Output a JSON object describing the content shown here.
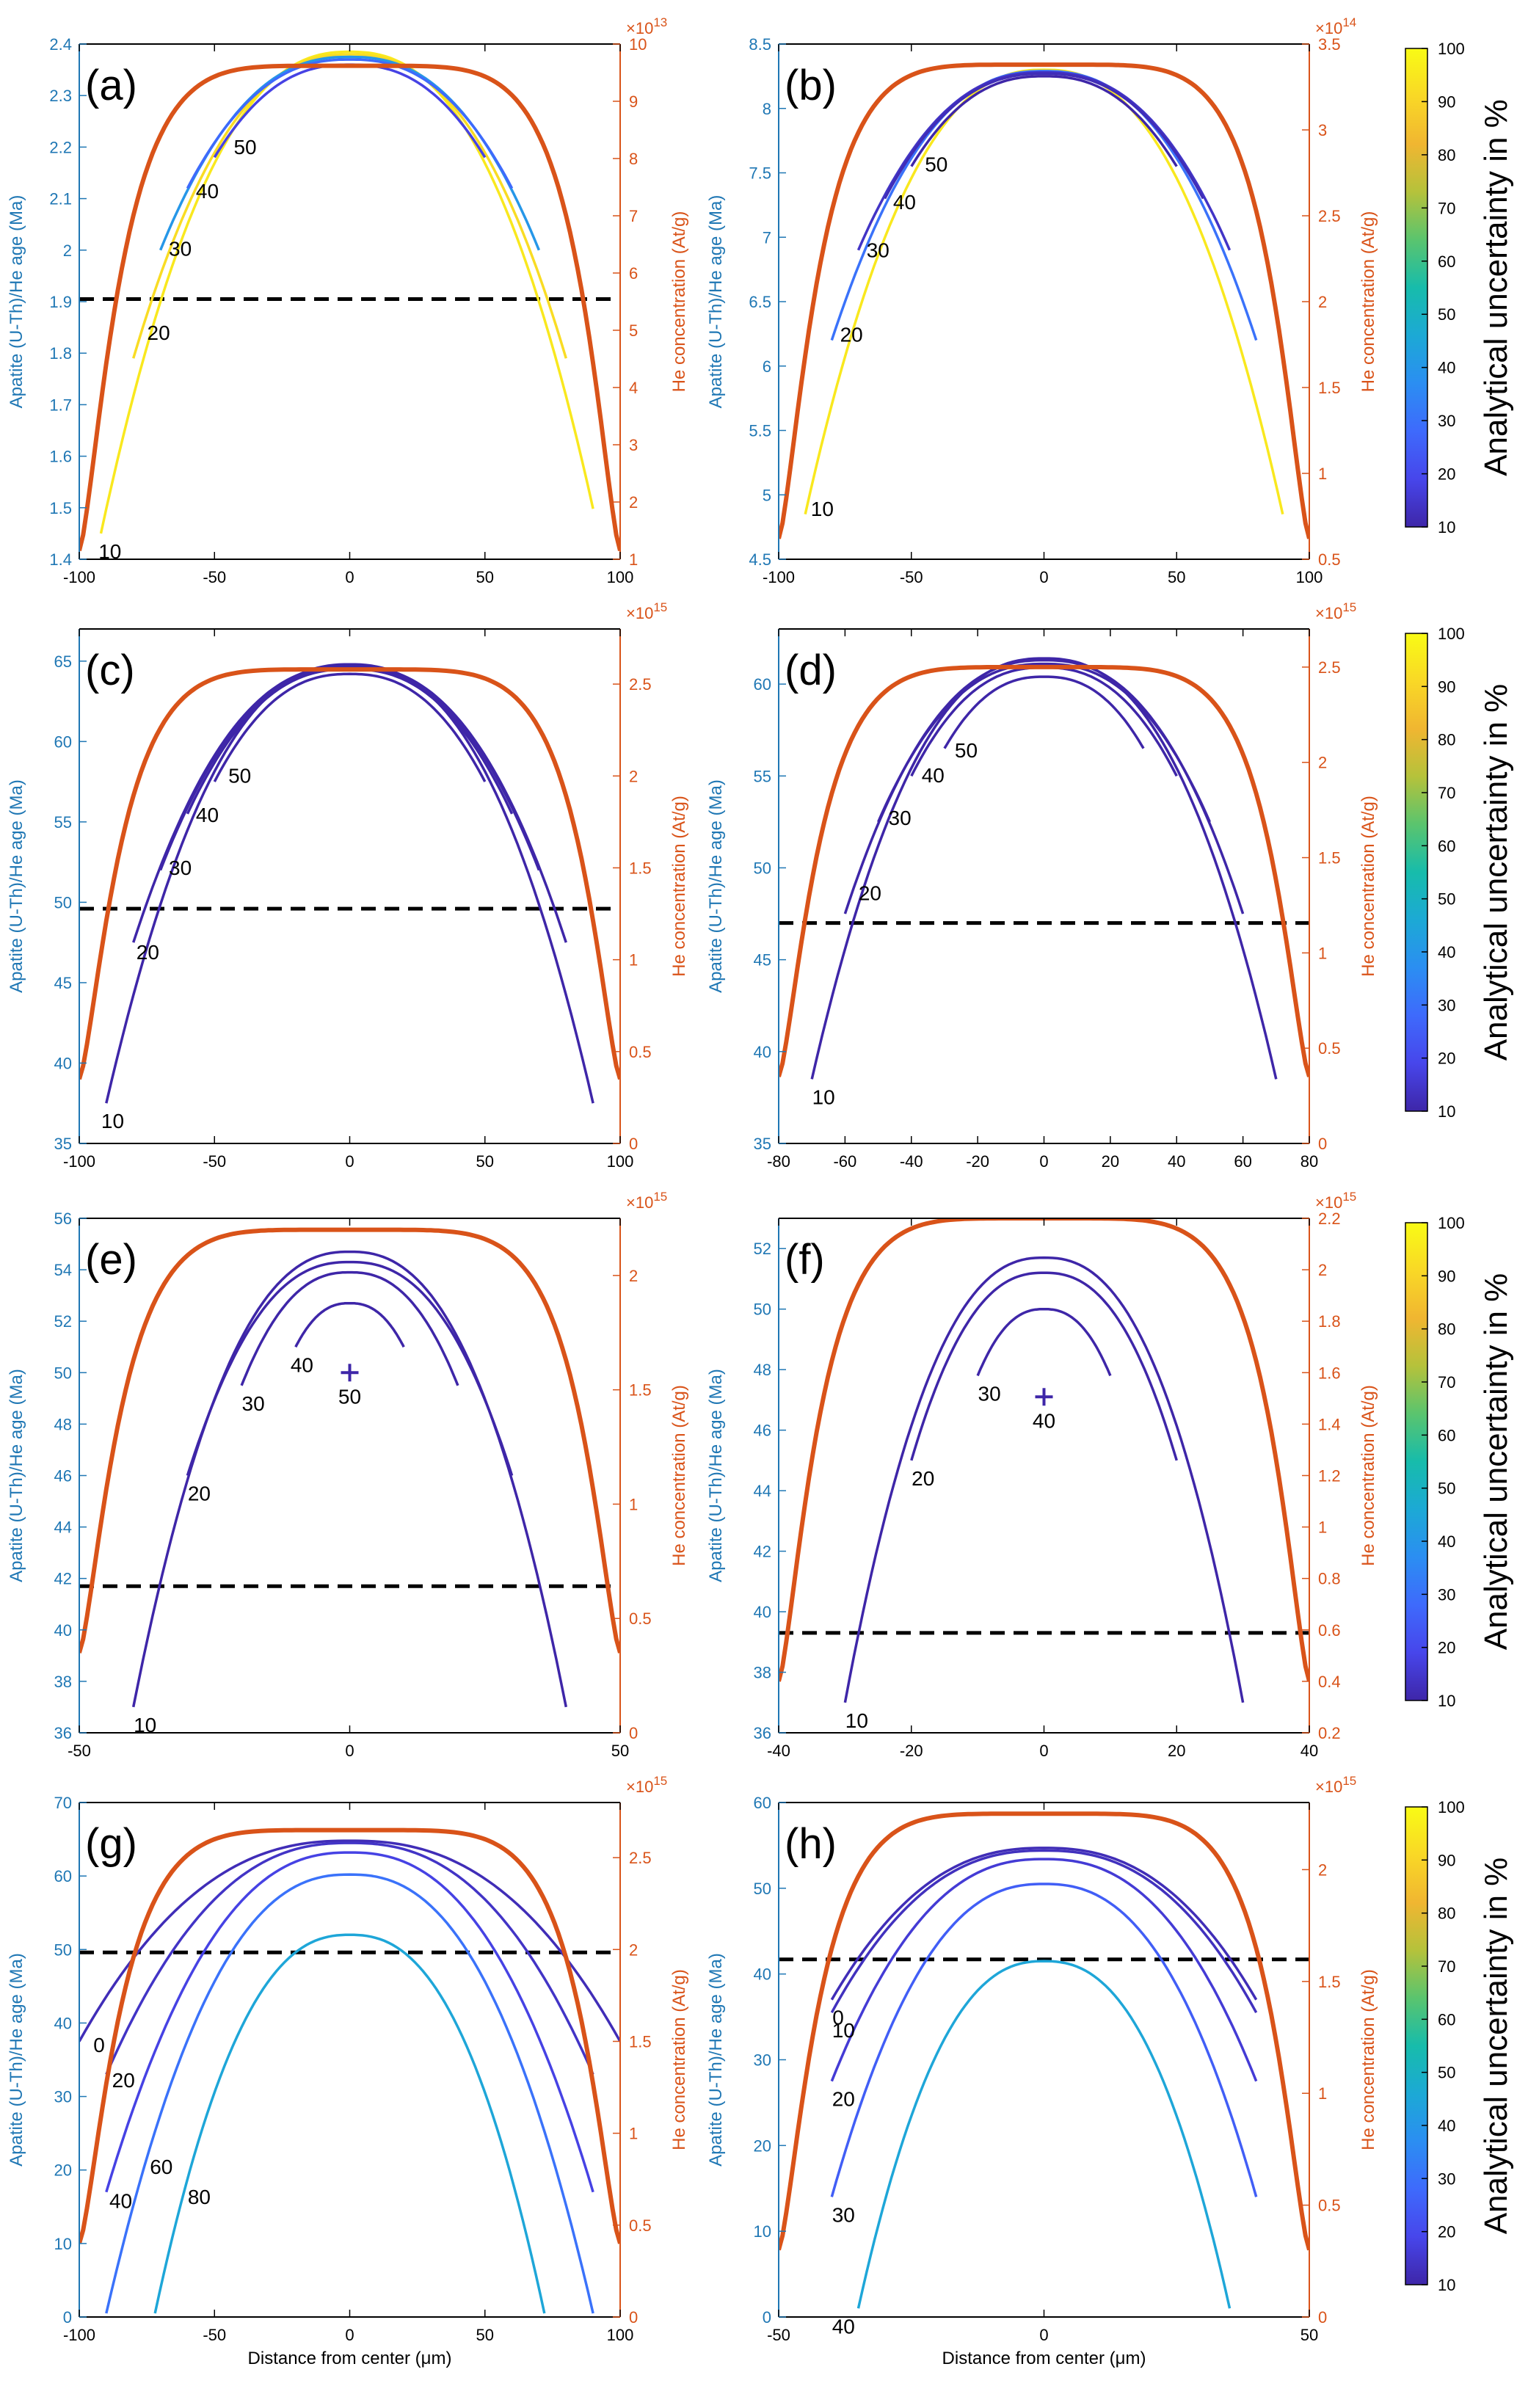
{
  "chart_data": [
    {
      "panel": "(a)",
      "type": "line",
      "xlim": [
        -100,
        100
      ],
      "xticks": [
        -100,
        -50,
        0,
        50,
        100
      ],
      "ylim_left": [
        1.4,
        2.4
      ],
      "yticks_left": [
        1.4,
        1.5,
        1.6,
        1.7,
        1.8,
        1.9,
        2,
        2.1,
        2.2,
        2.3,
        2.4
      ],
      "ylabel_left": "Apatite (U-Th)/He age (Ma)",
      "ylim_right": [
        1,
        10
      ],
      "yticks_right": [
        1,
        2,
        3,
        4,
        5,
        6,
        7,
        8,
        9,
        10
      ],
      "ylabel_right": "He concentration (At/g)",
      "right_exponent": "×10",
      "right_exponent_power": "13",
      "xlabel": "",
      "threshold": 1.905,
      "he_profile": {
        "x0": 100,
        "peak": 9.62,
        "edge": 1.15,
        "shape": 0.3
      },
      "contours": [
        {
          "label": "10",
          "xmin": -92,
          "xmax": 90,
          "peak": 2.385,
          "edge": 1.45,
          "uncertainty": 95,
          "label_at": -93,
          "label_pos": "below"
        },
        {
          "label": "20",
          "xmin": -80,
          "xmax": 80,
          "peak": 2.38,
          "edge": 1.79,
          "uncertainty": 92,
          "label_at": -75,
          "label_pos": "below"
        },
        {
          "label": "30",
          "xmin": -70,
          "xmax": 70,
          "peak": 2.375,
          "edge": 2.0,
          "uncertainty": 40,
          "label_at": -67,
          "label_pos": "below"
        },
        {
          "label": "40",
          "xmin": -60,
          "xmax": 60,
          "peak": 2.37,
          "edge": 2.12,
          "uncertainty": 28,
          "label_at": -57,
          "label_pos": "below"
        },
        {
          "label": "50",
          "xmin": -50,
          "xmax": 50,
          "peak": 2.36,
          "edge": 2.18,
          "uncertainty": 18,
          "label_at": -43,
          "label_pos": "below"
        }
      ]
    },
    {
      "panel": "(b)",
      "type": "line",
      "xlim": [
        -100,
        100
      ],
      "xticks": [
        -100,
        -50,
        0,
        50,
        100
      ],
      "ylim_left": [
        4.5,
        8.5
      ],
      "yticks_left": [
        4.5,
        5,
        5.5,
        6,
        6.5,
        7,
        7.5,
        8,
        8.5
      ],
      "ylabel_left": "Apatite (U-Th)/He age (Ma)",
      "ylim_right": [
        0.5,
        3.5
      ],
      "yticks_right": [
        0.5,
        1,
        1.5,
        2,
        2.5,
        3,
        3.5
      ],
      "ylabel_right": "He concentration (At/g)",
      "right_exponent": "×10",
      "right_exponent_power": "14",
      "xlabel": "",
      "threshold": null,
      "he_profile": {
        "x0": 100,
        "peak": 3.38,
        "edge": 0.62,
        "shape": 0.3
      },
      "contours": [
        {
          "label": "10",
          "xmin": -90,
          "xmax": 90,
          "peak": 8.3,
          "edge": 4.85,
          "uncertainty": 95,
          "label_at": -88,
          "label_pos": "below"
        },
        {
          "label": "20",
          "xmin": -80,
          "xmax": 80,
          "peak": 8.29,
          "edge": 6.2,
          "uncertainty": 30,
          "label_at": -77,
          "label_pos": "below"
        },
        {
          "label": "30",
          "xmin": -70,
          "xmax": 70,
          "peak": 8.28,
          "edge": 6.9,
          "uncertainty": 14,
          "label_at": -67,
          "label_pos": "below"
        },
        {
          "label": "40",
          "xmin": -60,
          "xmax": 60,
          "peak": 8.27,
          "edge": 7.3,
          "uncertainty": 12,
          "label_at": -57,
          "label_pos": "below"
        },
        {
          "label": "50",
          "xmin": -50,
          "xmax": 50,
          "peak": 8.25,
          "edge": 7.55,
          "uncertainty": 10,
          "label_at": -45,
          "label_pos": "below"
        }
      ]
    },
    {
      "panel": "(c)",
      "type": "line",
      "xlim": [
        -100,
        100
      ],
      "xticks": [
        -100,
        -50,
        0,
        50,
        100
      ],
      "ylim_left": [
        35,
        67
      ],
      "yticks_left": [
        35,
        40,
        45,
        50,
        55,
        60,
        65
      ],
      "ylabel_left": "Apatite (U-Th)/He age (Ma)",
      "ylim_right": [
        0,
        2.8
      ],
      "yticks_right": [
        0,
        0.5,
        1,
        1.5,
        2,
        2.5
      ],
      "ylabel_right": "He concentration (At/g)",
      "right_exponent": "×10",
      "right_exponent_power": "15",
      "xlabel": "",
      "threshold": 49.6,
      "he_profile": {
        "x0": 100,
        "peak": 2.58,
        "edge": 0.35,
        "shape": 0.3
      },
      "contours": [
        {
          "label": "10",
          "xmin": -90,
          "xmax": 90,
          "peak": 64.8,
          "edge": 37.5,
          "uncertainty": 10,
          "label_at": -92,
          "label_pos": "below"
        },
        {
          "label": "20",
          "xmin": -80,
          "xmax": 80,
          "peak": 64.7,
          "edge": 47.5,
          "uncertainty": 10,
          "label_at": -79,
          "label_pos": "below"
        },
        {
          "label": "30",
          "xmin": -70,
          "xmax": 70,
          "peak": 64.6,
          "edge": 52.0,
          "uncertainty": 10,
          "label_at": -67,
          "label_pos": "below"
        },
        {
          "label": "40",
          "xmin": -60,
          "xmax": 60,
          "peak": 64.5,
          "edge": 55.5,
          "uncertainty": 10,
          "label_at": -57,
          "label_pos": "below"
        },
        {
          "label": "50",
          "xmin": -50,
          "xmax": 50,
          "peak": 64.2,
          "edge": 57.5,
          "uncertainty": 10,
          "label_at": -45,
          "label_pos": "below"
        }
      ]
    },
    {
      "panel": "(d)",
      "type": "line",
      "xlim": [
        -80,
        80
      ],
      "xticks": [
        -80,
        -60,
        -40,
        -20,
        0,
        20,
        40,
        60,
        80
      ],
      "ylim_left": [
        35,
        63
      ],
      "yticks_left": [
        35,
        40,
        45,
        50,
        55,
        60
      ],
      "ylabel_left": "Apatite (U-Th)/He age (Ma)",
      "ylim_right": [
        0,
        2.7
      ],
      "yticks_right": [
        0,
        0.5,
        1,
        1.5,
        2,
        2.5
      ],
      "ylabel_right": "He concentration (At/g)",
      "right_exponent": "×10",
      "right_exponent_power": "15",
      "xlabel": "",
      "threshold": 47.0,
      "he_profile": {
        "x0": 80,
        "peak": 2.5,
        "edge": 0.35,
        "shape": 0.3
      },
      "contours": [
        {
          "label": "10",
          "xmin": -70,
          "xmax": 70,
          "peak": 61.4,
          "edge": 38.5,
          "uncertainty": 10,
          "label_at": -70,
          "label_pos": "below"
        },
        {
          "label": "20",
          "xmin": -60,
          "xmax": 60,
          "peak": 61.3,
          "edge": 47.5,
          "uncertainty": 10,
          "label_at": -56,
          "label_pos": "below"
        },
        {
          "label": "30",
          "xmin": -50,
          "xmax": 50,
          "peak": 61.1,
          "edge": 52.5,
          "uncertainty": 10,
          "label_at": -47,
          "label_pos": "below"
        },
        {
          "label": "40",
          "xmin": -40,
          "xmax": 40,
          "peak": 60.9,
          "edge": 55.0,
          "uncertainty": 10,
          "label_at": -37,
          "label_pos": "below"
        },
        {
          "label": "50",
          "xmin": -30,
          "xmax": 30,
          "peak": 60.4,
          "edge": 56.5,
          "uncertainty": 10,
          "label_at": -27,
          "label_pos": "below"
        }
      ]
    },
    {
      "panel": "(e)",
      "type": "line",
      "xlim": [
        -50,
        50
      ],
      "xticks": [
        -50,
        0,
        50
      ],
      "ylim_left": [
        36,
        56
      ],
      "yticks_left": [
        36,
        38,
        40,
        42,
        44,
        46,
        48,
        50,
        52,
        54,
        56
      ],
      "ylabel_left": "Apatite (U-Th)/He age (Ma)",
      "ylim_right": [
        0,
        2.25
      ],
      "yticks_right": [
        0,
        0.5,
        1,
        1.5,
        2
      ],
      "ylabel_right": "He concentration (At/g)",
      "right_exponent": "×10",
      "right_exponent_power": "15",
      "xlabel": "",
      "threshold": 41.7,
      "he_profile": {
        "x0": 50,
        "peak": 2.2,
        "edge": 0.35,
        "shape": 0.3
      },
      "marker": {
        "x": 0,
        "y": 50,
        "label": "50"
      },
      "contours": [
        {
          "label": "10",
          "xmin": -40,
          "xmax": 40,
          "peak": 54.7,
          "edge": 37.0,
          "uncertainty": 10,
          "label_at": -40,
          "label_pos": "below"
        },
        {
          "label": "20",
          "xmin": -30,
          "xmax": 30,
          "peak": 54.3,
          "edge": 46.0,
          "uncertainty": 10,
          "label_at": -30,
          "label_pos": "below"
        },
        {
          "label": "30",
          "xmin": -20,
          "xmax": 20,
          "peak": 53.9,
          "edge": 49.5,
          "uncertainty": 10,
          "label_at": -20,
          "label_pos": "below"
        },
        {
          "label": "40",
          "xmin": -10,
          "xmax": 10,
          "peak": 52.7,
          "edge": 51.0,
          "uncertainty": 10,
          "label_at": -11,
          "label_pos": "below"
        }
      ]
    },
    {
      "panel": "(f)",
      "type": "line",
      "xlim": [
        -40,
        40
      ],
      "xticks": [
        -40,
        -20,
        0,
        20,
        40
      ],
      "ylim_left": [
        36,
        53
      ],
      "yticks_left": [
        36,
        38,
        40,
        42,
        44,
        46,
        48,
        50,
        52
      ],
      "ylabel_left": "Apatite (U-Th)/He age (Ma)",
      "ylim_right": [
        0.2,
        2.2
      ],
      "yticks_right": [
        0.2,
        0.4,
        0.6,
        0.8,
        1,
        1.2,
        1.4,
        1.6,
        1.8,
        2,
        2.2
      ],
      "ylabel_right": "He concentration (At/g)",
      "right_exponent": "×10",
      "right_exponent_power": "15",
      "xlabel": "",
      "threshold": 39.3,
      "he_profile": {
        "x0": 40,
        "peak": 2.2,
        "edge": 0.4,
        "shape": 0.3
      },
      "marker": {
        "x": 0,
        "y": 47.1,
        "label": "40"
      },
      "contours": [
        {
          "label": "10",
          "xmin": -30,
          "xmax": 30,
          "peak": 51.7,
          "edge": 37.0,
          "uncertainty": 10,
          "label_at": -30,
          "label_pos": "below"
        },
        {
          "label": "20",
          "xmin": -20,
          "xmax": 20,
          "peak": 51.2,
          "edge": 45.0,
          "uncertainty": 10,
          "label_at": -20,
          "label_pos": "below"
        },
        {
          "label": "30",
          "xmin": -10,
          "xmax": 10,
          "peak": 50.0,
          "edge": 47.8,
          "uncertainty": 10,
          "label_at": -10,
          "label_pos": "below"
        }
      ]
    },
    {
      "panel": "(g)",
      "type": "line",
      "xlim": [
        -100,
        100
      ],
      "xticks": [
        -100,
        -50,
        0,
        50,
        100
      ],
      "ylim_left": [
        0,
        70
      ],
      "yticks_left": [
        0,
        10,
        20,
        30,
        40,
        50,
        60,
        70
      ],
      "ylabel_left": "Apatite (U-Th)/He age (Ma)",
      "ylim_right": [
        0,
        2.8
      ],
      "yticks_right": [
        0,
        0.5,
        1,
        1.5,
        2,
        2.5
      ],
      "ylabel_right": "He concentration (At/g)",
      "right_exponent": "×10",
      "right_exponent_power": "15",
      "xlabel": "Distance from center (μm)",
      "threshold": 49.6,
      "he_profile": {
        "x0": 100,
        "peak": 2.65,
        "edge": 0.4,
        "shape": 0.3
      },
      "contours": [
        {
          "label": "0",
          "xmin": -100,
          "xmax": 100,
          "peak": 64.8,
          "edge": 37.5,
          "uncertainty": 12,
          "label_at": -97,
          "label_pos": "below"
        },
        {
          "label": "20",
          "xmin": -90,
          "xmax": 90,
          "peak": 64.5,
          "edge": 33.0,
          "uncertainty": 14,
          "label_at": -88,
          "label_pos": "below"
        },
        {
          "label": "40",
          "xmin": -90,
          "xmax": 90,
          "peak": 63.2,
          "edge": 17.0,
          "uncertainty": 18,
          "label_at": -89,
          "label_pos": "below"
        },
        {
          "label": "60",
          "xmin": -90,
          "xmax": 90,
          "peak": 60.2,
          "edge": 0.5,
          "uncertainty": 30,
          "label_at": -74,
          "label_pos": "below"
        },
        {
          "label": "80",
          "xmin": -72,
          "xmax": 72,
          "peak": 52.0,
          "edge": 0.5,
          "uncertainty": 45,
          "label_at": -60,
          "label_pos": "below"
        }
      ]
    },
    {
      "panel": "(h)",
      "type": "line",
      "xlim": [
        -50,
        50
      ],
      "xticks": [
        -50,
        0,
        50
      ],
      "ylim_left": [
        0,
        60
      ],
      "yticks_left": [
        0,
        10,
        20,
        30,
        40,
        50,
        60
      ],
      "ylabel_left": "Apatite (U-Th)/He age (Ma)",
      "ylim_right": [
        0,
        2.3
      ],
      "yticks_right": [
        0,
        0.5,
        1,
        1.5,
        2
      ],
      "ylabel_right": "He concentration (At/g)",
      "right_exponent": "×10",
      "right_exponent_power": "15",
      "xlabel": "Distance from center (μm)",
      "threshold": 41.7,
      "he_profile": {
        "x0": 50,
        "peak": 2.25,
        "edge": 0.3,
        "shape": 0.3
      },
      "contours": [
        {
          "label": "0",
          "xmin": -40,
          "xmax": 40,
          "peak": 54.7,
          "edge": 37.0,
          "uncertainty": 12,
          "label_at": -41,
          "label_pos": "below"
        },
        {
          "label": "10",
          "xmin": -40,
          "xmax": 40,
          "peak": 54.4,
          "edge": 35.5,
          "uncertainty": 13,
          "label_at": -40,
          "label_pos": "below"
        },
        {
          "label": "20",
          "xmin": -40,
          "xmax": 40,
          "peak": 53.4,
          "edge": 27.5,
          "uncertainty": 16,
          "label_at": -40,
          "label_pos": "below"
        },
        {
          "label": "30",
          "xmin": -40,
          "xmax": 40,
          "peak": 50.5,
          "edge": 14.0,
          "uncertainty": 25,
          "label_at": -40,
          "label_pos": "below"
        },
        {
          "label": "40",
          "xmin": -35,
          "xmax": 35,
          "peak": 41.5,
          "edge": 1.0,
          "uncertainty": 45,
          "label_at": -40,
          "label_pos": "below"
        }
      ]
    }
  ],
  "colorbar": {
    "label": "Analytical uncertainty in %",
    "ticks": [
      10,
      20,
      30,
      40,
      50,
      60,
      70,
      80,
      90,
      100
    ],
    "range": [
      10,
      100
    ],
    "colormap": [
      "#3e26a8",
      "#4746eb",
      "#3e6afc",
      "#2b8ef2",
      "#1ca9d5",
      "#17bcab",
      "#5ac46e",
      "#b5c23b",
      "#f0b631",
      "#f9d826",
      "#f9fb15"
    ]
  },
  "colors": {
    "he_profile": "#d95319",
    "left_axis": "#1f77b4",
    "right_axis": "#d95319",
    "threshold": "#000000"
  }
}
